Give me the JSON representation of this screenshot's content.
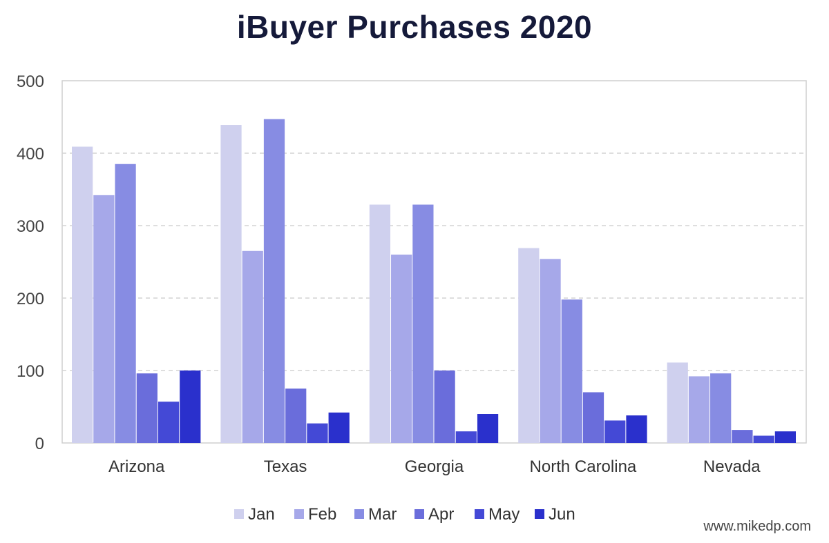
{
  "chart_data": {
    "type": "bar",
    "title": "iBuyer Purchases 2020",
    "source": "www.mikedp.com",
    "categories": [
      "Arizona",
      "Texas",
      "Georgia",
      "North Carolina",
      "Nevada"
    ],
    "series": [
      {
        "name": "Jan",
        "color": "#cfd0ee",
        "values": [
          409,
          439,
          329,
          269,
          111
        ]
      },
      {
        "name": "Feb",
        "color": "#a6a8e9",
        "values": [
          342,
          265,
          260,
          254,
          92
        ]
      },
      {
        "name": "Mar",
        "color": "#878ce3",
        "values": [
          385,
          447,
          329,
          198,
          96
        ]
      },
      {
        "name": "Apr",
        "color": "#6a6ddb",
        "values": [
          96,
          75,
          100,
          70,
          18
        ]
      },
      {
        "name": "May",
        "color": "#4449d6",
        "values": [
          57,
          27,
          16,
          31,
          10
        ]
      },
      {
        "name": "Jun",
        "color": "#2a30cc",
        "values": [
          100,
          42,
          40,
          38,
          16
        ]
      }
    ],
    "ylim": [
      0,
      500
    ],
    "yticks": [
      0,
      100,
      200,
      300,
      400,
      500
    ],
    "grid": true,
    "legend": "bottom-center"
  }
}
